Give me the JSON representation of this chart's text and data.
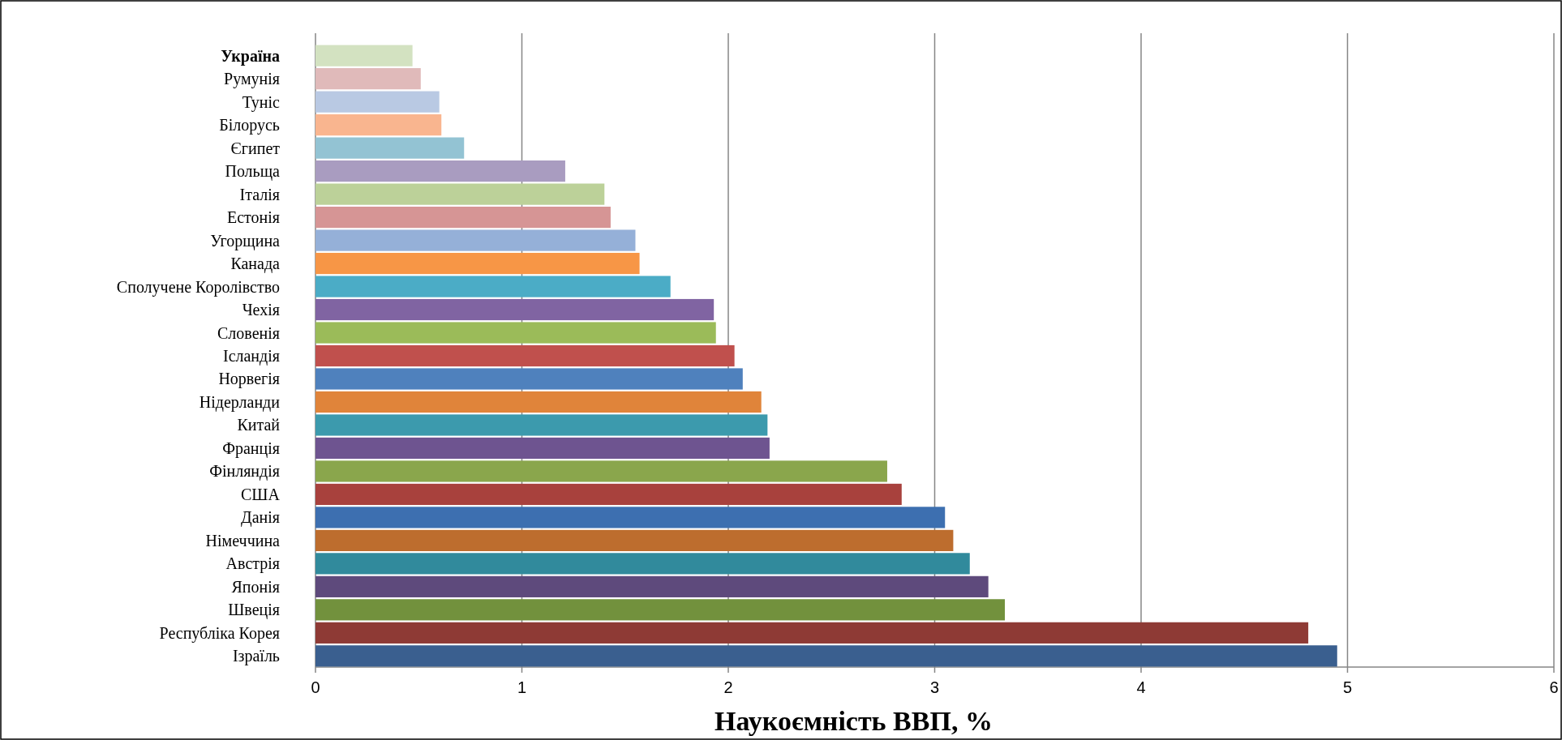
{
  "chart_data": {
    "type": "bar",
    "orientation": "horizontal",
    "xlabel": "Наукоємність ВВП, %",
    "categories": [
      "Україна",
      "Румунія",
      "Туніс",
      "Білорусь",
      "Єгипет",
      "Польща",
      "Італія",
      "Естонія",
      "Угорщина",
      "Канада",
      "Сполучене Королівство",
      "Чехія",
      "Словенія",
      "Ісландія",
      "Норвегія",
      "Нідерланди",
      "Китай",
      "Франція",
      "Фінляндія",
      "США",
      "Данія",
      "Німеччина",
      "Австрія",
      "Японія",
      "Швеція",
      "Республіка Корея",
      "Ізраїль"
    ],
    "values": [
      0.47,
      0.51,
      0.6,
      0.61,
      0.72,
      1.21,
      1.4,
      1.43,
      1.55,
      1.57,
      1.72,
      1.93,
      1.94,
      2.03,
      2.07,
      2.16,
      2.19,
      2.2,
      2.77,
      2.84,
      3.05,
      3.09,
      3.17,
      3.26,
      3.34,
      4.81,
      4.95
    ],
    "colors": [
      "#d3e2c1",
      "#e0baba",
      "#b9c9e3",
      "#f9b58f",
      "#93c3d3",
      "#a99cc0",
      "#bcd199",
      "#d69595",
      "#95b0d8",
      "#f79646",
      "#4bacc6",
      "#8064a2",
      "#9bbb59",
      "#c0504d",
      "#4f81bd",
      "#e0843a",
      "#3c9aad",
      "#6e5490",
      "#8aa64c",
      "#a8413d",
      "#3d6fb0",
      "#bd6d2e",
      "#318a9c",
      "#5e4a7c",
      "#72913d",
      "#8e3a35",
      "#3a5f8f"
    ],
    "xlim": [
      0,
      6
    ],
    "xticks": [
      0,
      1,
      2,
      3,
      4,
      5,
      6
    ],
    "grid": "x"
  }
}
